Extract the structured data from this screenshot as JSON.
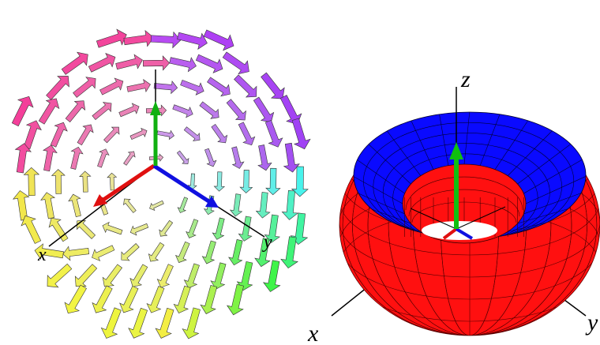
{
  "left_panel": {
    "axis_labels": {
      "x": "x",
      "y": "y"
    }
  },
  "right_panel": {
    "axis_labels": {
      "z": "z",
      "x": "x",
      "y": "y"
    }
  }
}
